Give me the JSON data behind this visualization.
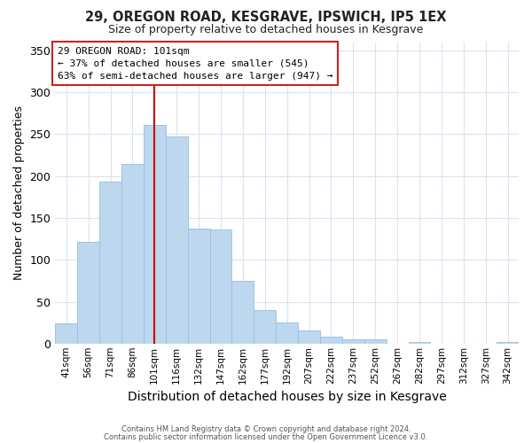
{
  "title": "29, OREGON ROAD, KESGRAVE, IPSWICH, IP5 1EX",
  "subtitle": "Size of property relative to detached houses in Kesgrave",
  "xlabel": "Distribution of detached houses by size in Kesgrave",
  "ylabel": "Number of detached properties",
  "bar_color": "#bdd7ee",
  "bar_edge_color": "#9dc3e6",
  "categories": [
    "41sqm",
    "56sqm",
    "71sqm",
    "86sqm",
    "101sqm",
    "116sqm",
    "132sqm",
    "147sqm",
    "162sqm",
    "177sqm",
    "192sqm",
    "207sqm",
    "222sqm",
    "237sqm",
    "252sqm",
    "267sqm",
    "282sqm",
    "297sqm",
    "312sqm",
    "327sqm",
    "342sqm"
  ],
  "values": [
    24,
    121,
    193,
    214,
    261,
    247,
    137,
    136,
    75,
    40,
    25,
    16,
    8,
    5,
    5,
    0,
    2,
    0,
    0,
    0,
    2
  ],
  "vline_x_idx": 4,
  "vline_color": "#cc0000",
  "ylim": [
    0,
    360
  ],
  "yticks": [
    0,
    50,
    100,
    150,
    200,
    250,
    300,
    350
  ],
  "annotation_title": "29 OREGON ROAD: 101sqm",
  "annotation_line1": "← 37% of detached houses are smaller (545)",
  "annotation_line2": "63% of semi-detached houses are larger (947) →",
  "footer1": "Contains HM Land Registry data © Crown copyright and database right 2024.",
  "footer2": "Contains public sector information licensed under the Open Government Licence v3.0.",
  "background_color": "#ffffff",
  "grid_color": "#d8e4f0"
}
